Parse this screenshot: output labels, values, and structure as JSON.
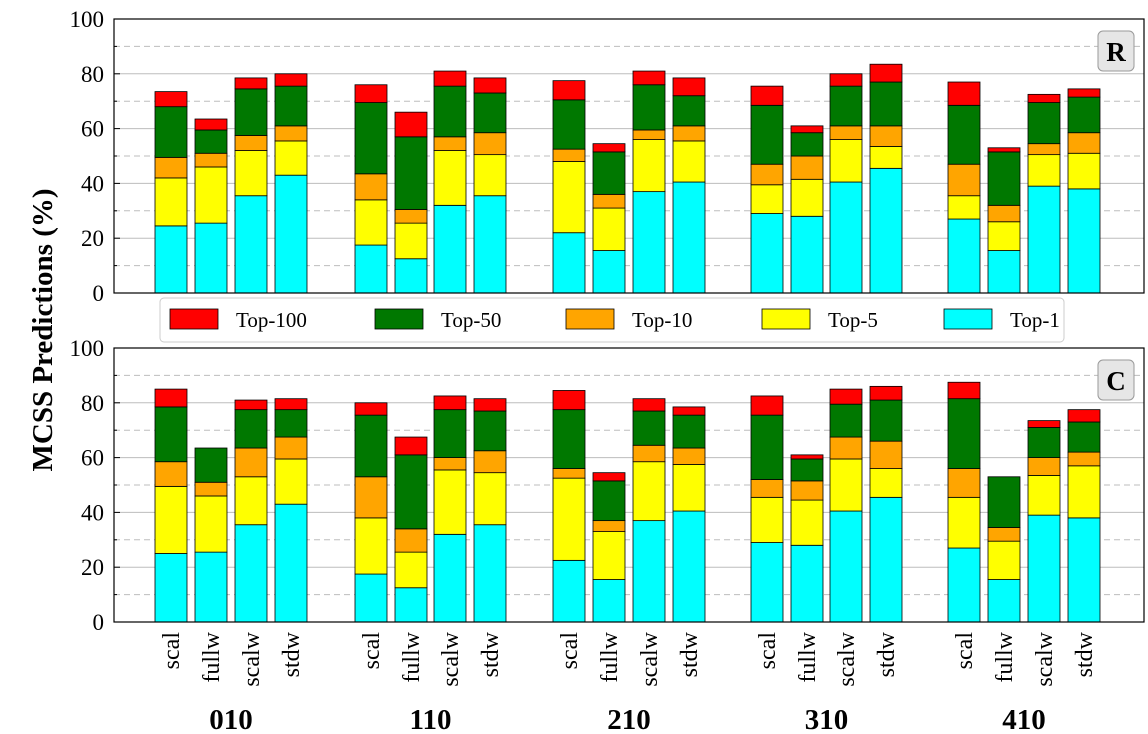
{
  "ylabel": "MCSS Predictions (%)",
  "colors": {
    "Top-100": "#ff0000",
    "Top-50": "#007800",
    "Top-10": "#ffa500",
    "Top-5": "#ffff00",
    "Top-1": "#00ffff"
  },
  "legend": [
    "Top-100",
    "Top-50",
    "Top-10",
    "Top-5",
    "Top-1"
  ],
  "chart_data": [
    {
      "type": "bar",
      "panel": "R",
      "ylim": [
        0,
        100
      ],
      "yticks": [
        "0",
        "20",
        "40",
        "60",
        "80",
        "100"
      ],
      "grid": "horizontal dashed",
      "groups": [
        "010",
        "110",
        "210",
        "310",
        "410"
      ],
      "categories": [
        "scal",
        "fullw",
        "scalw",
        "stdw"
      ],
      "stacked_cumulative": true,
      "series": [
        {
          "name": "Top-1",
          "values": [
            [
              24.5,
              25.5,
              35.5,
              43
            ],
            [
              17.5,
              12.5,
              32,
              35.5
            ],
            [
              22,
              15.5,
              37,
              40.5
            ],
            [
              29,
              28,
              40.5,
              45.5
            ],
            [
              27,
              15.5,
              39,
              38
            ]
          ]
        },
        {
          "name": "Top-5",
          "values": [
            [
              42,
              46,
              52,
              55.5
            ],
            [
              34,
              25.5,
              52,
              50.5
            ],
            [
              48,
              31,
              56,
              55.5
            ],
            [
              39.5,
              41.5,
              56,
              53.5
            ],
            [
              35.5,
              26,
              50.5,
              51
            ]
          ]
        },
        {
          "name": "Top-10",
          "values": [
            [
              49.5,
              51,
              57.5,
              61
            ],
            [
              43.5,
              30.5,
              57,
              58.5
            ],
            [
              52.5,
              36,
              59.5,
              61
            ],
            [
              47,
              50,
              61,
              61
            ],
            [
              47,
              32,
              54.5,
              58.5
            ]
          ]
        },
        {
          "name": "Top-50",
          "values": [
            [
              68,
              59.5,
              74.5,
              75.5
            ],
            [
              69.5,
              57,
              75.5,
              73
            ],
            [
              70.5,
              51.5,
              76,
              72
            ],
            [
              68.5,
              58.5,
              75.5,
              77
            ],
            [
              68.5,
              51.5,
              69.5,
              71.5
            ]
          ]
        },
        {
          "name": "Top-100",
          "values": [
            [
              73.5,
              63.5,
              78.5,
              80
            ],
            [
              76,
              66,
              81,
              78.5
            ],
            [
              77.5,
              54.5,
              81,
              78.5
            ],
            [
              75.5,
              61,
              80,
              83.5
            ],
            [
              77,
              53,
              72.5,
              74.5
            ]
          ]
        }
      ]
    },
    {
      "type": "bar",
      "panel": "C",
      "ylim": [
        0,
        100
      ],
      "yticks": [
        "0",
        "20",
        "40",
        "60",
        "80",
        "100"
      ],
      "grid": "horizontal dashed",
      "groups": [
        "010",
        "110",
        "210",
        "310",
        "410"
      ],
      "categories": [
        "scal",
        "fullw",
        "scalw",
        "stdw"
      ],
      "stacked_cumulative": true,
      "series": [
        {
          "name": "Top-1",
          "values": [
            [
              25,
              25.5,
              35.5,
              43
            ],
            [
              17.5,
              12.5,
              32,
              35.5
            ],
            [
              22.5,
              15.5,
              37,
              40.5
            ],
            [
              29,
              28,
              40.5,
              45.5
            ],
            [
              27,
              15.5,
              39,
              38
            ]
          ]
        },
        {
          "name": "Top-5",
          "values": [
            [
              49.5,
              46,
              53,
              59.5
            ],
            [
              38,
              25.5,
              55.5,
              54.5
            ],
            [
              52.5,
              33,
              58.5,
              57.5
            ],
            [
              45.5,
              44.5,
              59.5,
              56
            ],
            [
              45.5,
              29.5,
              53.5,
              57
            ]
          ]
        },
        {
          "name": "Top-10",
          "values": [
            [
              58.5,
              51,
              63.5,
              67.5
            ],
            [
              53,
              34,
              60,
              62.5
            ],
            [
              56,
              37,
              64.5,
              63.5
            ],
            [
              52,
              51.5,
              67.5,
              66
            ],
            [
              56,
              34.5,
              60,
              62
            ]
          ]
        },
        {
          "name": "Top-50",
          "values": [
            [
              78.5,
              63.5,
              77.5,
              77.5
            ],
            [
              75.5,
              61,
              77.5,
              77
            ],
            [
              77.5,
              51.5,
              77,
              75.5
            ],
            [
              75.5,
              59.5,
              79.5,
              81
            ],
            [
              81.5,
              53,
              71,
              73
            ]
          ]
        },
        {
          "name": "Top-100",
          "values": [
            [
              85,
              63.5,
              81,
              81.5
            ],
            [
              80,
              67.5,
              82.5,
              81.5
            ],
            [
              84.5,
              54.5,
              81.5,
              78.5
            ],
            [
              82.5,
              61,
              85,
              86
            ],
            [
              87.5,
              53,
              73.5,
              77.5
            ]
          ]
        }
      ]
    }
  ]
}
